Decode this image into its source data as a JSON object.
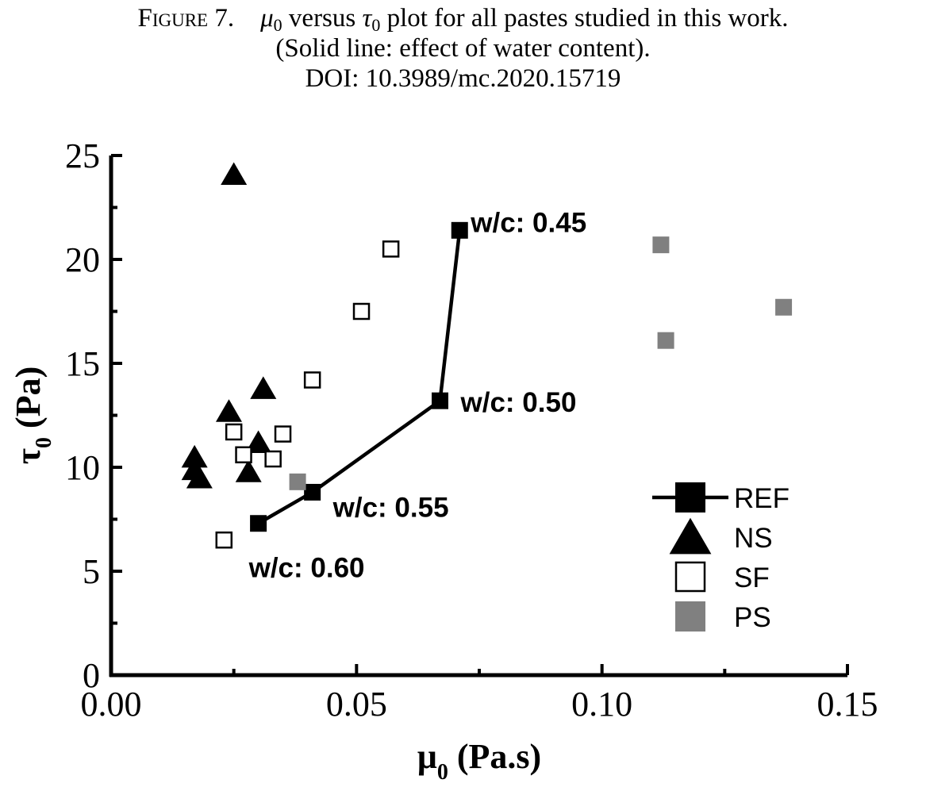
{
  "caption": {
    "figure_label": "Figure 7.",
    "line1_a": "μ",
    "line1_sub1": "0",
    "line1_b": " versus ",
    "line1_c": "τ",
    "line1_sub2": "0",
    "line1_d": " plot for all pastes studied in this work.",
    "line2": "(Solid line: effect of water content).",
    "line3": "DOI: 10.3989/mc.2020.15719"
  },
  "chart_data": {
    "type": "scatter",
    "title": "",
    "xlabel": "μ",
    "xlabel_sub": "0",
    "xlabel_unit": " (Pa.s)",
    "ylabel": "τ",
    "ylabel_sub": "0",
    "ylabel_unit": " (Pa)",
    "xlim": [
      0,
      0.15
    ],
    "ylim": [
      0,
      25
    ],
    "x_ticks": [
      0.0,
      0.05,
      0.1,
      0.15
    ],
    "x_tick_labels": [
      "0.00",
      "0.05",
      "0.10",
      "0.15"
    ],
    "y_ticks": [
      0,
      5,
      10,
      15,
      20,
      25
    ],
    "y_tick_labels": [
      "0",
      "5",
      "10",
      "15",
      "20",
      "25"
    ],
    "grid": false,
    "legend_position": "bottom-right",
    "series": [
      {
        "name": "REF",
        "marker": "square-filled",
        "line": true,
        "color": "#000000",
        "points": [
          [
            0.03,
            7.3
          ],
          [
            0.041,
            8.8
          ],
          [
            0.067,
            13.2
          ],
          [
            0.071,
            21.4
          ]
        ]
      },
      {
        "name": "NS",
        "marker": "triangle-filled",
        "line": false,
        "color": "#000000",
        "points": [
          [
            0.025,
            24.0
          ],
          [
            0.031,
            13.7
          ],
          [
            0.024,
            12.6
          ],
          [
            0.03,
            11.1
          ],
          [
            0.028,
            9.7
          ],
          [
            0.017,
            10.4
          ],
          [
            0.017,
            9.8
          ],
          [
            0.018,
            9.4
          ]
        ]
      },
      {
        "name": "SF",
        "marker": "square-open",
        "line": false,
        "color": "#000000",
        "points": [
          [
            0.057,
            20.5
          ],
          [
            0.051,
            17.5
          ],
          [
            0.041,
            14.2
          ],
          [
            0.035,
            11.6
          ],
          [
            0.025,
            11.7
          ],
          [
            0.027,
            10.6
          ],
          [
            0.033,
            10.4
          ],
          [
            0.023,
            6.5
          ]
        ]
      },
      {
        "name": "PS",
        "marker": "square-gray",
        "line": false,
        "color": "#808080",
        "points": [
          [
            0.112,
            20.7
          ],
          [
            0.137,
            17.7
          ],
          [
            0.113,
            16.1
          ],
          [
            0.038,
            9.3
          ]
        ]
      }
    ],
    "annotations": [
      {
        "text": "w/c: 0.45"
      },
      {
        "text": "w/c: 0.50"
      },
      {
        "text": "w/c: 0.55"
      },
      {
        "text": "w/c: 0.60"
      }
    ]
  }
}
